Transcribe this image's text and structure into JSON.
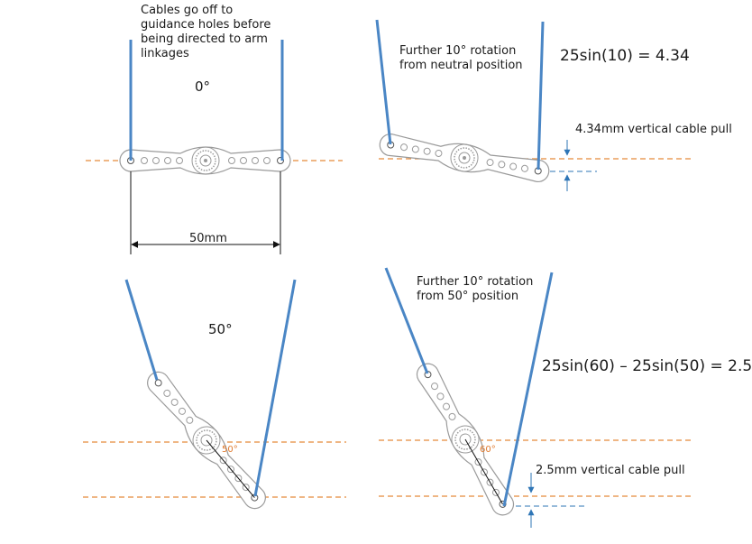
{
  "colors": {
    "cable": "#4a86c5",
    "reference_line": "#e58a3a",
    "servo_arm": "#9a9a9a",
    "dimension": "#111111",
    "angle_label": "#e07a2e",
    "guide_arrow": "#2e75b6"
  },
  "labels": {
    "cables_note": "Cables go off to\nguidance holes before\nbeing directed to arm\nlinkages",
    "angle_0": "0°",
    "width_dimension": "50mm",
    "rotation_note_1": "Further 10° rotation\nfrom neutral position",
    "formula_1": "25sin(10) = 4.34",
    "cable_pull_1": "4.34mm vertical cable pull",
    "angle_50": "50°",
    "rotation_note_2": "Further 10° rotation\nfrom 50° position",
    "formula_2": "25sin(60) – 25sin(50) = 2.5",
    "cable_pull_2": "2.5mm vertical cable pull",
    "small_angle_50": "50°",
    "small_angle_60": "60°"
  }
}
